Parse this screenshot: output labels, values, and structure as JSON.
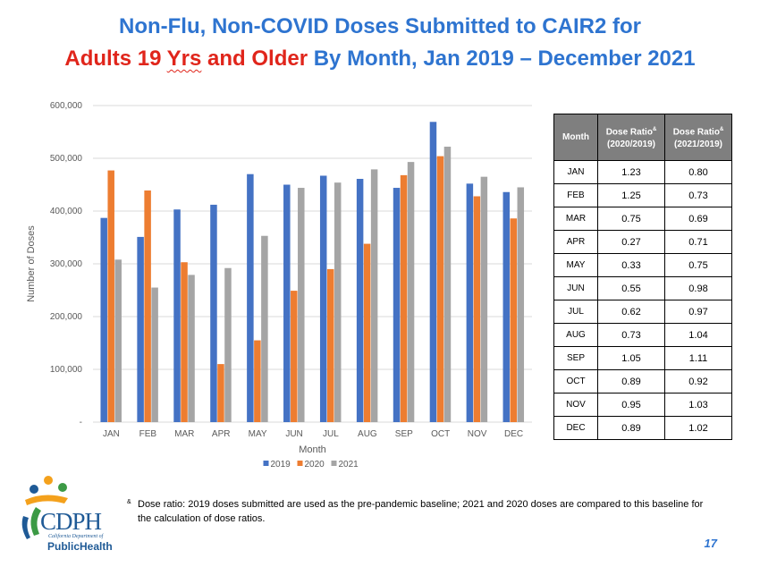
{
  "title": {
    "line1": "Non-Flu, Non-COVID Doses Submitted to CAIR2 for",
    "line2_red_a": "Adults 19 ",
    "line2_red_b": "Yrs",
    "line2_red_c": " and Older",
    "line2_blue_a": " By Month, ",
    "line2_blue_b": "Jan 2019 – December 2021"
  },
  "colors": {
    "s2019": "#4472c4",
    "s2020": "#ed7d31",
    "s2021": "#a5a5a5",
    "title_blue": "#2e74d0",
    "title_red": "#e0251b"
  },
  "chart_data": {
    "type": "bar",
    "categories": [
      "JAN",
      "FEB",
      "MAR",
      "APR",
      "MAY",
      "JUN",
      "JUL",
      "AUG",
      "SEP",
      "OCT",
      "NOV",
      "DEC"
    ],
    "series": [
      {
        "name": "2019",
        "values": [
          387000,
          351000,
          403000,
          412000,
          470000,
          450000,
          467000,
          461000,
          444000,
          569000,
          452000,
          436000
        ]
      },
      {
        "name": "2020",
        "values": [
          477000,
          439000,
          303000,
          110000,
          155000,
          249000,
          290000,
          338000,
          468000,
          504000,
          428000,
          386000
        ]
      },
      {
        "name": "2021",
        "values": [
          308000,
          255000,
          279000,
          292000,
          353000,
          444000,
          454000,
          479000,
          493000,
          522000,
          465000,
          445000
        ]
      }
    ],
    "xlabel": "Month",
    "ylabel": "Number of Doses",
    "ylim": [
      0,
      600000
    ],
    "yticks": [
      "-",
      "100,000",
      "200,000",
      "300,000",
      "400,000",
      "500,000",
      "600,000"
    ],
    "grid": true,
    "legend": "bottom"
  },
  "table": {
    "headers": {
      "month": "Month",
      "r1a": "Dose Ratio",
      "r1b": "(2020/2019)",
      "r2a": "Dose Ratio",
      "r2b": "(2021/2019)",
      "mark": "&"
    },
    "rows": [
      {
        "month": "JAN",
        "r1": "1.23",
        "r2": "0.80"
      },
      {
        "month": "FEB",
        "r1": "1.25",
        "r2": "0.73"
      },
      {
        "month": "MAR",
        "r1": "0.75",
        "r2": "0.69"
      },
      {
        "month": "APR",
        "r1": "0.27",
        "r2": "0.71"
      },
      {
        "month": "MAY",
        "r1": "0.33",
        "r2": "0.75"
      },
      {
        "month": "JUN",
        "r1": "0.55",
        "r2": "0.98"
      },
      {
        "month": "JUL",
        "r1": "0.62",
        "r2": "0.97"
      },
      {
        "month": "AUG",
        "r1": "0.73",
        "r2": "1.04"
      },
      {
        "month": "SEP",
        "r1": "1.05",
        "r2": "1.11"
      },
      {
        "month": "OCT",
        "r1": "0.89",
        "r2": "0.92"
      },
      {
        "month": "NOV",
        "r1": "0.95",
        "r2": "1.03"
      },
      {
        "month": "DEC",
        "r1": "0.89",
        "r2": "1.02"
      }
    ]
  },
  "footnote": {
    "mark": "&",
    "text": "Dose ratio: 2019 doses submitted are used as the pre-pandemic baseline; 2021 and 2020 doses are compared to this baseline for the calculation of dose ratios."
  },
  "logo": {
    "name": "CDPH",
    "sub": "California Department of",
    "sub2": "PublicHealth"
  },
  "page_number": "17"
}
